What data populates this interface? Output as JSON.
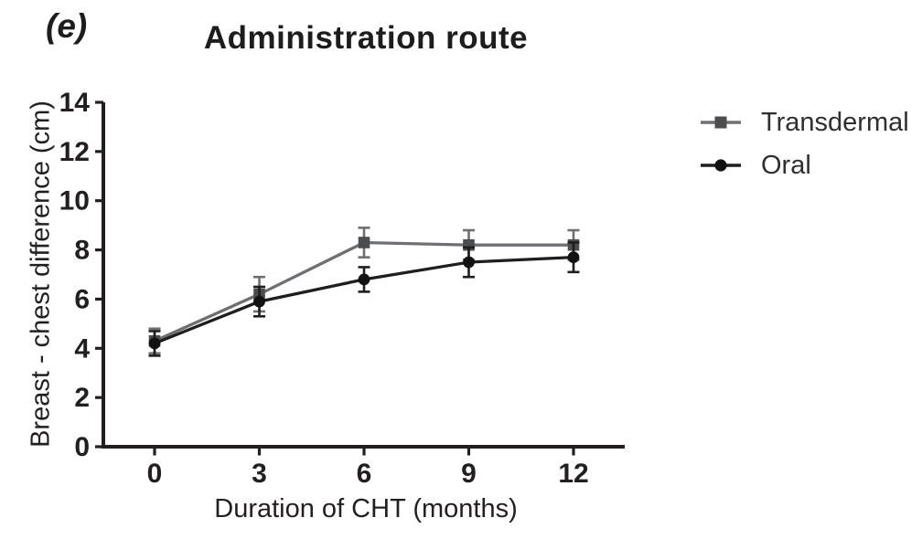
{
  "panel_label": "(e)",
  "chart_data": {
    "type": "line",
    "title": "Administration route",
    "xlabel": "Duration of CHT (months)",
    "ylabel": "Breast - chest difference (cm)",
    "x": [
      0,
      3,
      6,
      9,
      12
    ],
    "xticks": [
      0,
      3,
      6,
      9,
      12
    ],
    "yticks": [
      0,
      2,
      4,
      6,
      8,
      10,
      12,
      14
    ],
    "xlim": [
      0,
      12
    ],
    "ylim": [
      0,
      14
    ],
    "grid": false,
    "legend_position": "right",
    "axis_color": "#231f20",
    "error_bars": true,
    "series": [
      {
        "name": "Transdermal",
        "marker": "square",
        "marker_color": "#4c4d4f",
        "line_color": "#6e6f72",
        "values": [
          4.3,
          6.2,
          8.3,
          8.2,
          8.2
        ],
        "errors": [
          0.5,
          0.7,
          0.6,
          0.6,
          0.6
        ]
      },
      {
        "name": "Oral",
        "marker": "circle",
        "marker_color": "#121212",
        "line_color": "#1e1e1e",
        "values": [
          4.2,
          5.9,
          6.8,
          7.5,
          7.7
        ],
        "errors": [
          0.5,
          0.6,
          0.5,
          0.6,
          0.6
        ]
      }
    ]
  }
}
